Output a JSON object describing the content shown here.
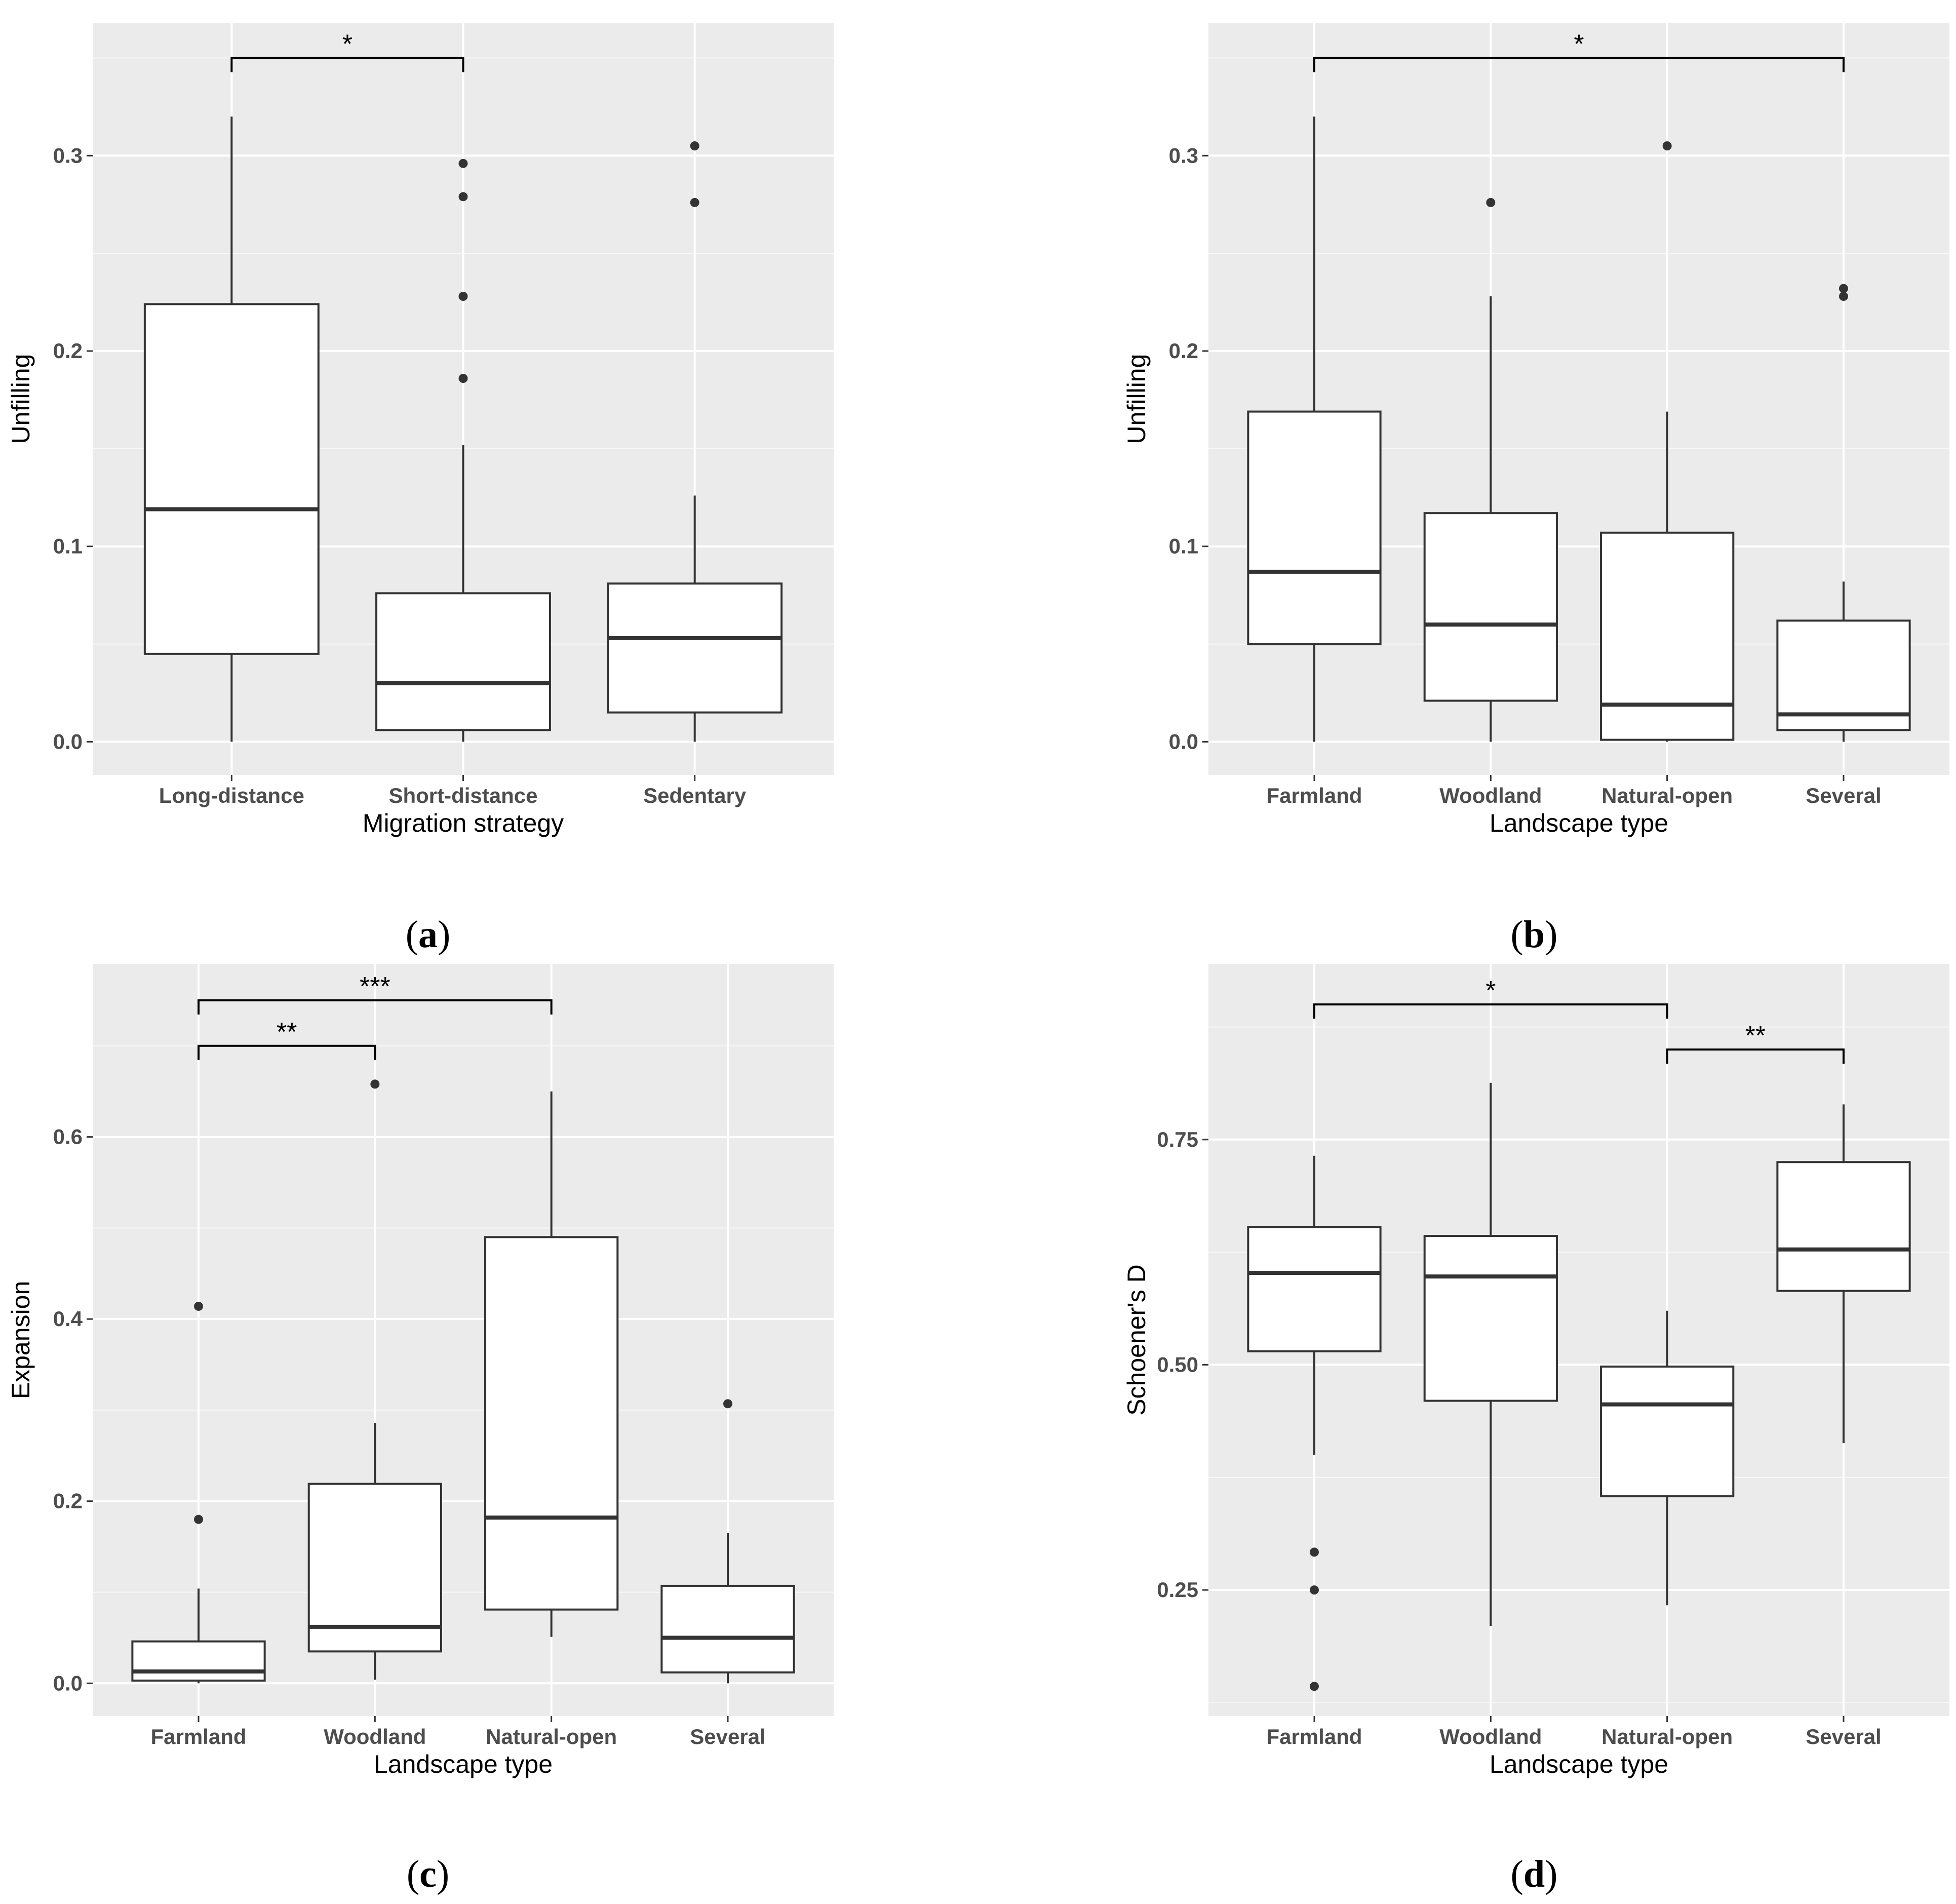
{
  "chart_data": [
    {
      "type": "box",
      "panel_label": "a",
      "xlabel": "Migration strategy",
      "ylabel": "Unfilling",
      "categories": [
        "Long-distance",
        "Short-distance",
        "Sedentary"
      ],
      "ylim": [
        -0.017,
        0.368
      ],
      "yticks": [
        0.0,
        0.1,
        0.2,
        0.3
      ],
      "ytick_labels": [
        "0.0",
        "0.1",
        "0.2",
        "0.3"
      ],
      "boxes": [
        {
          "category": "Long-distance",
          "whisker_low": 0.0,
          "q1": 0.045,
          "median": 0.119,
          "q3": 0.224,
          "whisker_high": 0.32,
          "outliers": []
        },
        {
          "category": "Short-distance",
          "whisker_low": 0.0,
          "q1": 0.006,
          "median": 0.03,
          "q3": 0.076,
          "whisker_high": 0.152,
          "outliers": [
            0.186,
            0.228,
            0.279,
            0.296
          ]
        },
        {
          "category": "Sedentary",
          "whisker_low": 0.0,
          "q1": 0.015,
          "median": 0.053,
          "q3": 0.081,
          "whisker_high": 0.126,
          "outliers": [
            0.276,
            0.305
          ]
        }
      ],
      "significance": [
        {
          "from": "Long-distance",
          "to": "Short-distance",
          "y": 0.35,
          "label": "*"
        }
      ]
    },
    {
      "type": "box",
      "panel_label": "b",
      "xlabel": "Landscape type",
      "ylabel": "Unfilling",
      "categories": [
        "Farmland",
        "Woodland",
        "Natural-open",
        "Several"
      ],
      "ylim": [
        -0.017,
        0.368
      ],
      "yticks": [
        0.0,
        0.1,
        0.2,
        0.3
      ],
      "ytick_labels": [
        "0.0",
        "0.1",
        "0.2",
        "0.3"
      ],
      "boxes": [
        {
          "category": "Farmland",
          "whisker_low": 0.0,
          "q1": 0.05,
          "median": 0.087,
          "q3": 0.169,
          "whisker_high": 0.32,
          "outliers": []
        },
        {
          "category": "Woodland",
          "whisker_low": 0.0,
          "q1": 0.021,
          "median": 0.06,
          "q3": 0.117,
          "whisker_high": 0.228,
          "outliers": [
            0.276
          ]
        },
        {
          "category": "Natural-open",
          "whisker_low": 0.0,
          "q1": 0.001,
          "median": 0.019,
          "q3": 0.107,
          "whisker_high": 0.169,
          "outliers": [
            0.305
          ]
        },
        {
          "category": "Several",
          "whisker_low": 0.0,
          "q1": 0.006,
          "median": 0.014,
          "q3": 0.062,
          "whisker_high": 0.082,
          "outliers": [
            0.228,
            0.232
          ]
        }
      ],
      "significance": [
        {
          "from": "Farmland",
          "to": "Several",
          "y": 0.35,
          "label": "*"
        }
      ]
    },
    {
      "type": "box",
      "panel_label": "c",
      "xlabel": "Landscape type",
      "ylabel": "Expansion",
      "categories": [
        "Farmland",
        "Woodland",
        "Natural-open",
        "Several"
      ],
      "ylim": [
        -0.036,
        0.79
      ],
      "yticks": [
        0.0,
        0.2,
        0.4,
        0.6
      ],
      "ytick_labels": [
        "0.0",
        "0.2",
        "0.4",
        "0.6"
      ],
      "boxes": [
        {
          "category": "Farmland",
          "whisker_low": 0.0,
          "q1": 0.003,
          "median": 0.013,
          "q3": 0.046,
          "whisker_high": 0.104,
          "outliers": [
            0.18,
            0.414
          ]
        },
        {
          "category": "Woodland",
          "whisker_low": 0.004,
          "q1": 0.035,
          "median": 0.062,
          "q3": 0.219,
          "whisker_high": 0.286,
          "outliers": [
            0.658
          ]
        },
        {
          "category": "Natural-open",
          "whisker_low": 0.051,
          "q1": 0.081,
          "median": 0.182,
          "q3": 0.49,
          "whisker_high": 0.65,
          "outliers": []
        },
        {
          "category": "Several",
          "whisker_low": 0.0,
          "q1": 0.012,
          "median": 0.05,
          "q3": 0.107,
          "whisker_high": 0.165,
          "outliers": [
            0.307
          ]
        }
      ],
      "significance": [
        {
          "from": "Farmland",
          "to": "Woodland",
          "y": 0.7,
          "label": "**"
        },
        {
          "from": "Farmland",
          "to": "Natural-open",
          "y": 0.75,
          "label": "***"
        }
      ]
    },
    {
      "type": "box",
      "panel_label": "d",
      "xlabel": "Landscape type",
      "ylabel": "Schoener's D",
      "categories": [
        "Farmland",
        "Woodland",
        "Natural-open",
        "Several"
      ],
      "ylim": [
        0.11,
        0.945
      ],
      "yticks": [
        0.25,
        0.5,
        0.75
      ],
      "ytick_labels": [
        "0.25",
        "0.50",
        "0.75"
      ],
      "boxes": [
        {
          "category": "Farmland",
          "whisker_low": 0.4,
          "q1": 0.515,
          "median": 0.602,
          "q3": 0.653,
          "whisker_high": 0.732,
          "outliers": [
            0.143,
            0.25,
            0.292
          ]
        },
        {
          "category": "Woodland",
          "whisker_low": 0.21,
          "q1": 0.46,
          "median": 0.598,
          "q3": 0.643,
          "whisker_high": 0.813,
          "outliers": []
        },
        {
          "category": "Natural-open",
          "whisker_low": 0.233,
          "q1": 0.354,
          "median": 0.456,
          "q3": 0.498,
          "whisker_high": 0.56,
          "outliers": []
        },
        {
          "category": "Several",
          "whisker_low": 0.413,
          "q1": 0.582,
          "median": 0.628,
          "q3": 0.725,
          "whisker_high": 0.789,
          "outliers": []
        }
      ],
      "significance": [
        {
          "from": "Farmland",
          "to": "Natural-open",
          "y": 0.9,
          "label": "*"
        },
        {
          "from": "Natural-open",
          "to": "Several",
          "y": 0.85,
          "label": "**"
        }
      ]
    }
  ]
}
